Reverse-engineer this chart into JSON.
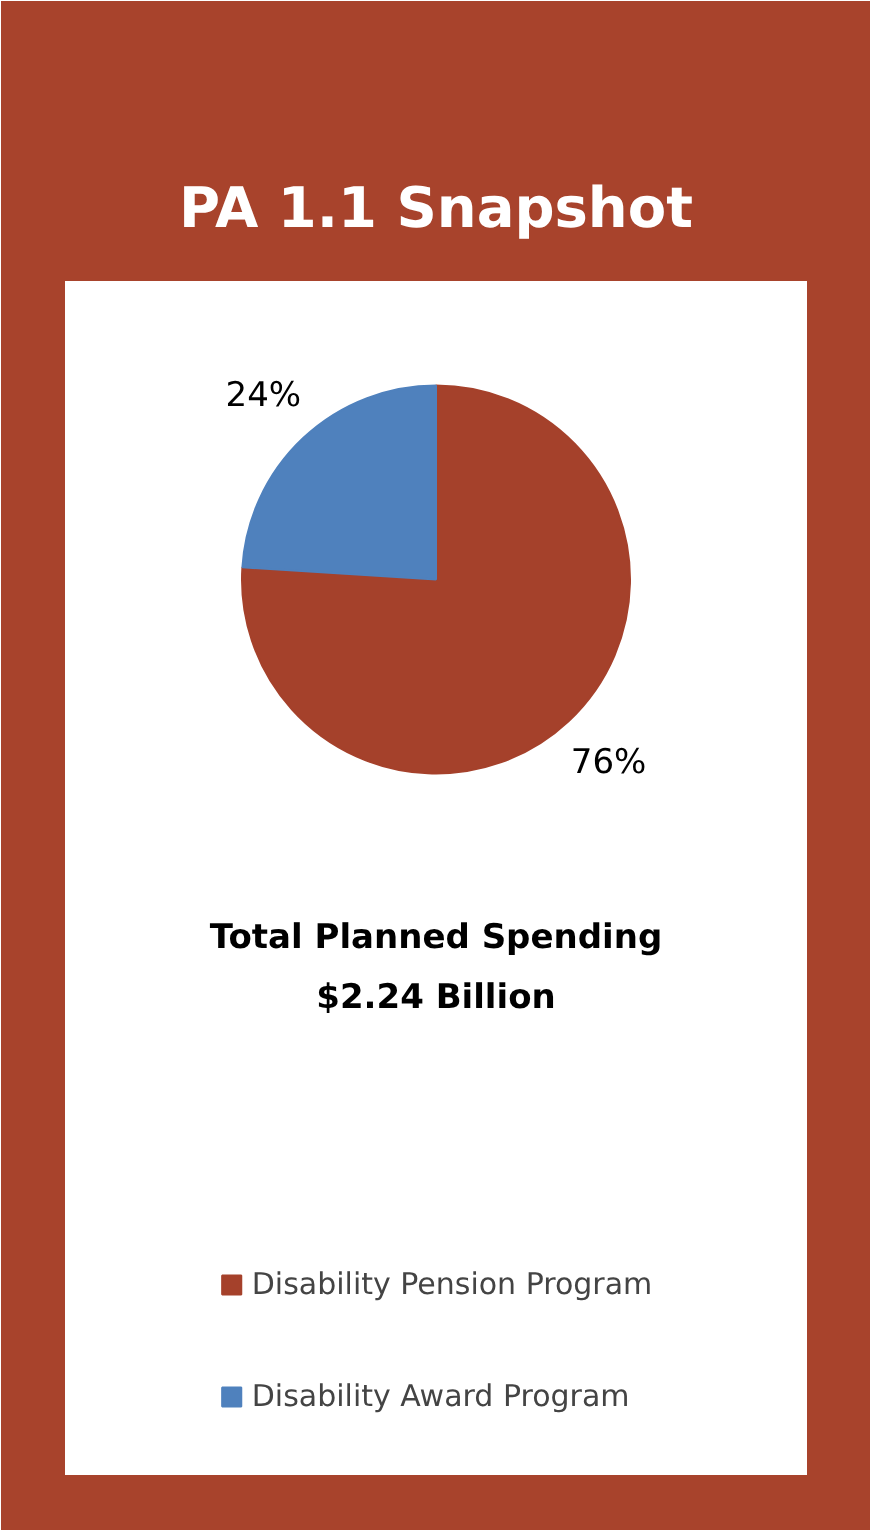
{
  "chart_data": {
    "type": "pie",
    "title": "PA 1.1 Snapshot",
    "subtitle": "Total Planned Spending\n$2.24 Billion",
    "categories": [
      "Disability Pension Program",
      "Disability Award Program"
    ],
    "values": [
      76,
      24
    ],
    "colors": [
      "#a5412b",
      "#4f81bd"
    ],
    "value_labels": [
      "76%",
      "24%"
    ],
    "legend": "bottom"
  }
}
